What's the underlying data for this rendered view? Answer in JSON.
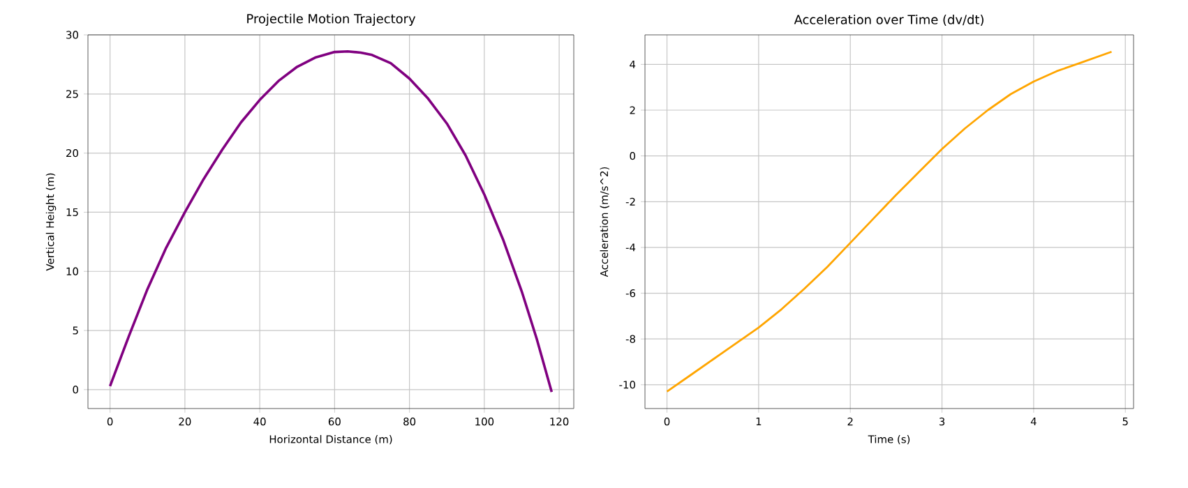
{
  "chart_data": [
    {
      "type": "line",
      "title": "Projectile Motion Trajectory",
      "xlabel": "Horizontal Distance (m)",
      "ylabel": "Vertical Height (m)",
      "grid": true,
      "x": [
        0,
        5,
        10,
        15,
        20,
        25,
        30,
        35,
        40,
        45,
        50,
        55,
        60,
        63.5,
        67,
        70,
        75,
        80,
        85,
        90,
        95,
        100,
        105,
        110,
        114,
        118
      ],
      "series": [
        {
          "color": "#800080",
          "values": [
            0.3,
            4.5,
            8.5,
            12,
            15,
            17.8,
            20.3,
            22.6,
            24.5,
            26.1,
            27.3,
            28.1,
            28.55,
            28.6,
            28.5,
            28.3,
            27.6,
            26.3,
            24.6,
            22.5,
            19.8,
            16.5,
            12.7,
            8.3,
            4.3,
            -0.2
          ]
        }
      ],
      "xlim": [
        -5.9,
        123.9
      ],
      "ylim": [
        -1.6,
        30
      ],
      "xticks": [
        0,
        20,
        40,
        60,
        80,
        100,
        120
      ],
      "yticks": [
        0,
        5,
        10,
        15,
        20,
        25,
        30
      ]
    },
    {
      "type": "line",
      "title": "Acceleration over Time (dv/dt)",
      "xlabel": "Time (s)",
      "ylabel": "Acceleration (m/s^2)",
      "grid": true,
      "x": [
        0,
        0.25,
        0.5,
        0.75,
        1,
        1.25,
        1.5,
        1.75,
        2,
        2.25,
        2.5,
        2.75,
        3,
        3.25,
        3.5,
        3.75,
        4,
        4.25,
        4.5,
        4.85
      ],
      "series": [
        {
          "color": "#ffa500",
          "values": [
            -10.3,
            -9.6,
            -8.9,
            -8.2,
            -7.5,
            -6.7,
            -5.8,
            -4.85,
            -3.8,
            -2.75,
            -1.7,
            -0.7,
            0.3,
            1.2,
            2.0,
            2.7,
            3.25,
            3.7,
            4.05,
            4.55
          ]
        }
      ],
      "xlim": [
        -0.24,
        5.09
      ],
      "ylim": [
        -11.04,
        5.29
      ],
      "xticks": [
        0,
        1,
        2,
        3,
        4,
        5
      ],
      "yticks": [
        -10,
        -8,
        -6,
        -4,
        -2,
        0,
        2,
        4
      ]
    }
  ]
}
